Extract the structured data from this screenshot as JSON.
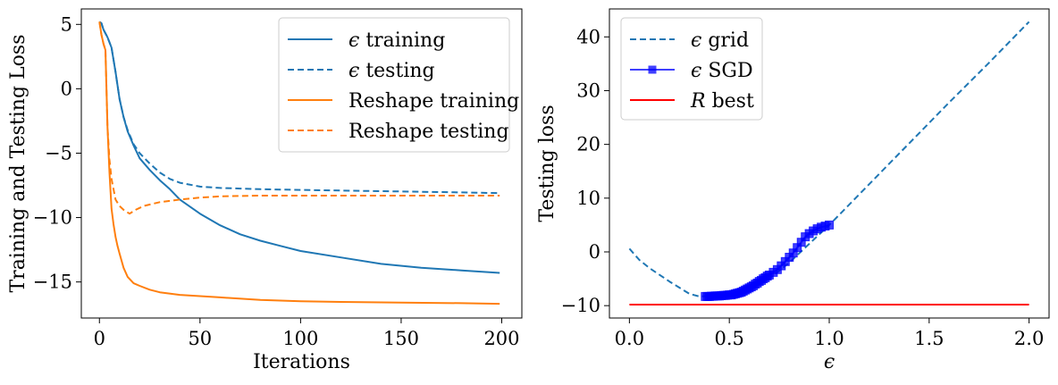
{
  "chart_data": [
    {
      "type": "line",
      "xlabel": "Iterations",
      "ylabel": "Training and Testing Loss",
      "xlim": [
        -9,
        210
      ],
      "ylim": [
        -17.8,
        6.2
      ],
      "xticks": [
        0,
        50,
        100,
        150,
        200
      ],
      "xtick_labels": [
        "0",
        "50",
        "100",
        "150",
        "200"
      ],
      "yticks": [
        5,
        0,
        -5,
        -10,
        -15
      ],
      "ytick_labels": [
        "5",
        "0",
        "−5",
        "−10",
        "−15"
      ],
      "grid": false,
      "legend_position": "top-right",
      "series": [
        {
          "name": "ϵ training",
          "color": "#1f77b4",
          "dash": "solid",
          "x": [
            0,
            1,
            2,
            4,
            6,
            8,
            10,
            12,
            14,
            17,
            20,
            25,
            30,
            35,
            40,
            50,
            60,
            70,
            80,
            90,
            100,
            120,
            140,
            160,
            180,
            199
          ],
          "y": [
            5.2,
            5.1,
            4.6,
            4.0,
            3.2,
            1.3,
            -0.8,
            -2.2,
            -3.3,
            -4.4,
            -5.4,
            -6.3,
            -7.1,
            -7.8,
            -8.6,
            -9.7,
            -10.6,
            -11.3,
            -11.8,
            -12.2,
            -12.6,
            -13.1,
            -13.6,
            -13.9,
            -14.1,
            -14.3
          ]
        },
        {
          "name": "ϵ testing",
          "color": "#1f77b4",
          "dash": "dashed",
          "x": [
            0,
            1,
            2,
            4,
            6,
            8,
            10,
            12,
            14,
            17,
            20,
            25,
            30,
            35,
            40,
            50,
            60,
            70,
            80,
            100,
            120,
            140,
            160,
            180,
            199
          ],
          "y": [
            5.2,
            5.1,
            4.6,
            4.0,
            3.2,
            1.3,
            -0.8,
            -2.2,
            -3.2,
            -4.3,
            -5.0,
            -5.8,
            -6.5,
            -7.0,
            -7.3,
            -7.6,
            -7.7,
            -7.75,
            -7.8,
            -7.85,
            -7.9,
            -7.95,
            -8.0,
            -8.05,
            -8.1
          ]
        },
        {
          "name": "Reshape training",
          "color": "#ff7f0e",
          "dash": "solid",
          "x": [
            0,
            1,
            2,
            3,
            4,
            5,
            6,
            7,
            8,
            9,
            10,
            12,
            14,
            17,
            20,
            25,
            30,
            40,
            50,
            60,
            80,
            100,
            120,
            150,
            180,
            199
          ],
          "y": [
            5.2,
            4.2,
            3.5,
            3.0,
            -3.0,
            -6.5,
            -9.3,
            -10.5,
            -11.5,
            -12.2,
            -12.8,
            -13.9,
            -14.6,
            -15.1,
            -15.3,
            -15.6,
            -15.8,
            -16.0,
            -16.1,
            -16.2,
            -16.4,
            -16.5,
            -16.55,
            -16.6,
            -16.65,
            -16.7
          ]
        },
        {
          "name": "Reshape testing",
          "color": "#ff7f0e",
          "dash": "dashed",
          "x": [
            0,
            1,
            2,
            3,
            4,
            5,
            6,
            8,
            10,
            12,
            15,
            18,
            22,
            30,
            40,
            50,
            60,
            80,
            100,
            130,
            160,
            199
          ],
          "y": [
            5.2,
            4.2,
            3.5,
            3.0,
            -3.0,
            -5.5,
            -7.0,
            -8.6,
            -9.1,
            -9.4,
            -9.7,
            -9.4,
            -9.1,
            -8.8,
            -8.6,
            -8.45,
            -8.35,
            -8.3,
            -8.3,
            -8.3,
            -8.3,
            -8.3
          ]
        }
      ]
    },
    {
      "type": "line",
      "xlabel": "ϵ",
      "ylabel": "Testing loss",
      "xlim": [
        -0.1,
        2.1
      ],
      "ylim": [
        -12.3,
        45.2
      ],
      "xticks": [
        0.0,
        0.5,
        1.0,
        1.5,
        2.0
      ],
      "xtick_labels": [
        "0.0",
        "0.5",
        "1.0",
        "1.5",
        "2.0"
      ],
      "yticks": [
        40,
        30,
        20,
        10,
        0,
        -10
      ],
      "ytick_labels": [
        "40",
        "30",
        "20",
        "10",
        "0",
        "−10"
      ],
      "grid": false,
      "legend_position": "top-left",
      "series": [
        {
          "name": "ϵ grid",
          "color": "#1f77b4",
          "dash": "dashed",
          "x": [
            0.0,
            0.05,
            0.1,
            0.2,
            0.3,
            0.35,
            0.4,
            0.5,
            0.6,
            0.7,
            0.8,
            0.9,
            1.0,
            1.2,
            1.4,
            1.6,
            1.8,
            2.0
          ],
          "y": [
            0.6,
            -1.5,
            -3.0,
            -5.5,
            -7.8,
            -8.3,
            -8.2,
            -8.0,
            -7.0,
            -5.0,
            -2.0,
            1.5,
            5.0,
            12.6,
            20.2,
            27.8,
            35.2,
            42.8
          ]
        },
        {
          "name": "ϵ SGD",
          "color": "#0000ff",
          "dash": "solid",
          "marker": "square",
          "x": [
            0.38,
            0.39,
            0.4,
            0.41,
            0.42,
            0.43,
            0.44,
            0.45,
            0.46,
            0.47,
            0.48,
            0.49,
            0.5,
            0.51,
            0.52,
            0.53,
            0.54,
            0.55,
            0.56,
            0.57,
            0.58,
            0.59,
            0.6,
            0.61,
            0.62,
            0.63,
            0.64,
            0.65,
            0.66,
            0.67,
            0.68,
            0.69,
            0.7,
            0.72,
            0.74,
            0.76,
            0.78,
            0.8,
            0.82,
            0.84,
            0.86,
            0.88,
            0.9,
            0.92,
            0.94,
            0.96,
            0.98,
            1.0
          ],
          "y": [
            -8.3,
            -8.3,
            -8.3,
            -8.25,
            -8.25,
            -8.2,
            -8.2,
            -8.2,
            -8.15,
            -8.1,
            -8.1,
            -8.05,
            -8.0,
            -8.0,
            -7.9,
            -7.8,
            -7.7,
            -7.6,
            -7.5,
            -7.3,
            -7.1,
            -6.9,
            -6.7,
            -6.5,
            -6.3,
            -6.0,
            -5.8,
            -5.5,
            -5.3,
            -5.0,
            -4.8,
            -4.5,
            -4.3,
            -3.8,
            -3.3,
            -2.6,
            -1.8,
            -1.0,
            -0.2,
            0.8,
            1.8,
            2.8,
            3.4,
            3.9,
            4.3,
            4.6,
            4.8,
            5.0
          ]
        },
        {
          "name": "R best",
          "color": "#ff0000",
          "dash": "solid",
          "x": [
            0.0,
            2.0
          ],
          "y": [
            -9.8,
            -9.8
          ]
        }
      ]
    }
  ]
}
